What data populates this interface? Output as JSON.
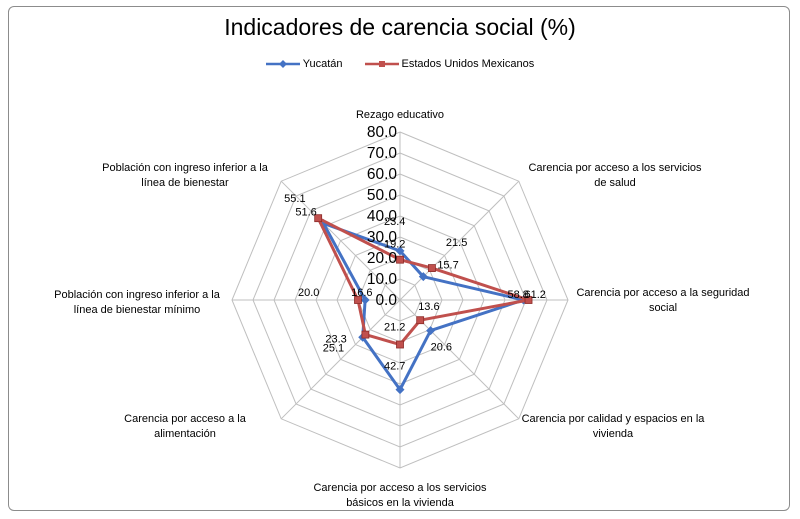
{
  "chart_data": {
    "type": "radar",
    "title": "Indicadores de carencia social (%)",
    "axes": [
      "Rezago educativo",
      "Carencia por acceso a los servicios de salud",
      "Carencia por acceso a la seguridad social",
      "Carencia por calidad y espacios en la vivienda",
      "Carencia por acceso a los servicios básicos en la vivienda",
      "Carencia por acceso a la alimentación",
      "Población con ingreso inferior a la línea de bienestar mínimo",
      "Población con ingreso inferior a la línea de bienestar"
    ],
    "axis_label_lines": [
      [
        "Rezago educativo"
      ],
      [
        "Carencia por acceso a los servicios",
        "de salud"
      ],
      [
        "Carencia por acceso a la seguridad",
        "social"
      ],
      [
        "Carencia por calidad y espacios en la",
        "vivienda"
      ],
      [
        "Carencia por acceso a los servicios",
        "básicos en la vivienda"
      ],
      [
        "Carencia por acceso a la",
        "alimentación"
      ],
      [
        "Población con ingreso inferior a la",
        "línea de bienestar mínimo"
      ],
      [
        "Población con ingreso inferior a la",
        "línea de bienestar"
      ]
    ],
    "scale": {
      "min": 0,
      "max": 80,
      "step": 10
    },
    "tick_labels": [
      "0.0",
      "10.0",
      "20.0",
      "30.0",
      "40.0",
      "50.0",
      "60.0",
      "70.0",
      "80.0"
    ],
    "series": [
      {
        "name": "Yucatán",
        "color": "#4472c4",
        "marker": "diamond",
        "values": [
          23.4,
          15.7,
          58.8,
          20.6,
          42.7,
          25.1,
          16.6,
          51.6
        ],
        "labels": [
          "23.4",
          "15.7",
          "58.8",
          "20.6",
          "42.7",
          "25.1",
          "16.6",
          "51.6"
        ]
      },
      {
        "name": "Estados Unidos Mexicanos",
        "color": "#c0504d",
        "marker": "square",
        "values": [
          19.2,
          21.5,
          61.2,
          13.6,
          21.2,
          23.3,
          20.0,
          55.1
        ],
        "labels": [
          "19.2",
          "21.5",
          "61.2",
          "13.6",
          "21.2",
          "23.3",
          "20.0",
          "55.1"
        ]
      }
    ],
    "grid": true,
    "legend_position": "top"
  }
}
